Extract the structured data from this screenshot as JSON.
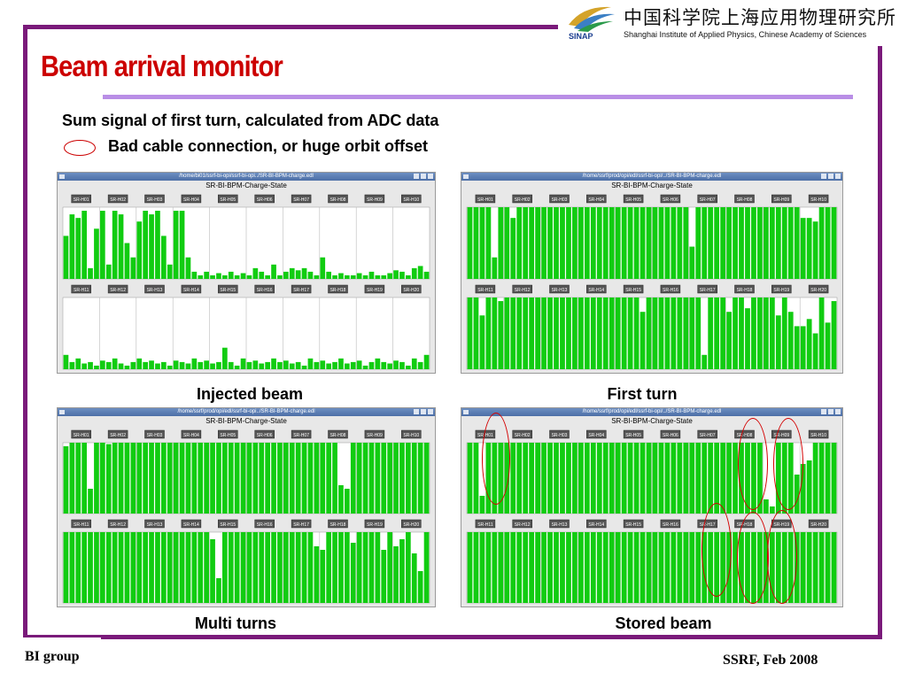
{
  "header": {
    "institute_cn": "中国科学院上海应用物理研究所",
    "logo_text": "SINAP",
    "institute_en": "Shanghai Institute of Applied Physics, Chinese Academy of Sciences"
  },
  "title": "Beam arrival monitor",
  "subtitle": "Sum signal of first turn, calculated from ADC data",
  "legend_text": "Bad cable connection, or huge orbit offset",
  "colors": {
    "frame": "#7a1a7a",
    "title": "#cc0000",
    "bar": "#11cc11",
    "highlight": "#d40000",
    "title_rule": "#b98ee6"
  },
  "panels": [
    {
      "caption": "Injected beam",
      "window_title": "/home/bi01/ssrf-bi-opi/ssrf-bi-opi../SR-BI-BPM-charge.edl",
      "heading": "SR-BI-BPM-Charge-State",
      "groups_top": [
        "SR-H01",
        "SR-H02",
        "SR-H03",
        "SR-H04",
        "SR-H05",
        "SR-H06",
        "SR-H07",
        "SR-H08",
        "SR-H09",
        "SR-H10"
      ],
      "groups_bottom": [
        "SR-H11",
        "SR-H12",
        "SR-H13",
        "SR-H14",
        "SR-H15",
        "SR-H16",
        "SR-H17",
        "SR-H18",
        "SR-H19",
        "SR-H20"
      ],
      "levels_top": [
        0.6,
        0.9,
        0.85,
        0.95,
        0.15,
        0.7,
        0.95,
        0.2,
        0.95,
        0.9,
        0.5,
        0.3,
        0.8,
        0.95,
        0.9,
        0.95,
        0.6,
        0.2,
        0.95,
        0.95,
        0.3,
        0.1,
        0.05,
        0.1,
        0.05,
        0.08,
        0.05,
        0.1,
        0.05,
        0.08,
        0.05,
        0.15,
        0.1,
        0.05,
        0.2,
        0.05,
        0.1,
        0.15,
        0.12,
        0.15,
        0.1,
        0.05,
        0.3,
        0.1,
        0.05,
        0.08,
        0.05,
        0.05,
        0.08,
        0.05,
        0.1,
        0.05,
        0.05,
        0.08,
        0.12,
        0.1,
        0.05,
        0.15,
        0.18,
        0.1
      ],
      "levels_bottom": [
        0.2,
        0.1,
        0.15,
        0.08,
        0.1,
        0.05,
        0.12,
        0.1,
        0.15,
        0.08,
        0.05,
        0.1,
        0.15,
        0.1,
        0.12,
        0.08,
        0.1,
        0.05,
        0.12,
        0.1,
        0.08,
        0.15,
        0.1,
        0.12,
        0.08,
        0.1,
        0.3,
        0.1,
        0.05,
        0.15,
        0.1,
        0.12,
        0.08,
        0.1,
        0.15,
        0.1,
        0.12,
        0.08,
        0.1,
        0.05,
        0.15,
        0.1,
        0.12,
        0.08,
        0.1,
        0.15,
        0.08,
        0.1,
        0.12,
        0.05,
        0.1,
        0.15,
        0.1,
        0.08,
        0.12,
        0.1,
        0.05,
        0.15,
        0.1,
        0.2
      ]
    },
    {
      "caption": "First turn",
      "window_title": "/home/ssrf/prod/opi/edl/ssrf-bi-opi/../SR-BI-BPM-charge.edl",
      "heading": "SR-BI-BPM-Charge-State",
      "groups_top": [
        "SR-H01",
        "SR-H02",
        "SR-H03",
        "SR-H04",
        "SR-H05",
        "SR-H06",
        "SR-H07",
        "SR-H08",
        "SR-H09",
        "SR-H10"
      ],
      "groups_bottom": [
        "SR-H11",
        "SR-H12",
        "SR-H13",
        "SR-H14",
        "SR-H15",
        "SR-H16",
        "SR-H17",
        "SR-H18",
        "SR-H19",
        "SR-H20"
      ],
      "levels_top": [
        1,
        1,
        1,
        1,
        0.3,
        1,
        1,
        0.85,
        1,
        1,
        1,
        1,
        1,
        1,
        1,
        1,
        1,
        1,
        1,
        1,
        1,
        1,
        1,
        1,
        1,
        1,
        1,
        1,
        1,
        1,
        1,
        1,
        1,
        1,
        1,
        1,
        0.45,
        1,
        1,
        1,
        1,
        1,
        1,
        1,
        1,
        1,
        1,
        1,
        1,
        1,
        1,
        1,
        1,
        1,
        0.85,
        0.85,
        0.8,
        1,
        1,
        1
      ],
      "levels_bottom": [
        1,
        1,
        0.75,
        1,
        1,
        0.95,
        1,
        1,
        1,
        1,
        1,
        1,
        1,
        1,
        1,
        1,
        1,
        1,
        1,
        1,
        1,
        1,
        1,
        1,
        1,
        1,
        1,
        1,
        0.8,
        1,
        1,
        1,
        1,
        1,
        1,
        1,
        1,
        1,
        0.2,
        1,
        1,
        1,
        0.8,
        1,
        1,
        0.85,
        1,
        1,
        1,
        1,
        0.75,
        1,
        0.8,
        0.6,
        0.6,
        0.7,
        0.5,
        1,
        0.65,
        0.95
      ]
    },
    {
      "caption": "Multi turns",
      "window_title": "/home/ssrf/prod/opi/edl/ssrf-bi-opi../SR-BI-BPM-charge.edl",
      "heading": "SR-BI-BPM-Charge-State",
      "groups_top": [
        "SR-H01",
        "SR-H02",
        "SR-H03",
        "SR-H04",
        "SR-H05",
        "SR-H06",
        "SR-H07",
        "SR-H08",
        "SR-H09",
        "SR-H10"
      ],
      "groups_bottom": [
        "SR-H11",
        "SR-H12",
        "SR-H13",
        "SR-H14",
        "SR-H15",
        "SR-H16",
        "SR-H17",
        "SR-H18",
        "SR-H19",
        "SR-H20"
      ],
      "levels_top": [
        0.95,
        1,
        1,
        1,
        0.35,
        1,
        1,
        0.98,
        1,
        1,
        1,
        1,
        1,
        1,
        1,
        1,
        1,
        1,
        1,
        1,
        1,
        1,
        1,
        1,
        1,
        1,
        1,
        1,
        1,
        1,
        1,
        1,
        1,
        1,
        1,
        1,
        1,
        1,
        1,
        1,
        1,
        1,
        1,
        1,
        1,
        0.4,
        0.35,
        1,
        1,
        1,
        1,
        1,
        1,
        1,
        1,
        1,
        1,
        1,
        1,
        1
      ],
      "levels_bottom": [
        1,
        1,
        1,
        1,
        1,
        1,
        1,
        1,
        1,
        1,
        1,
        1,
        1,
        1,
        1,
        1,
        1,
        1,
        1,
        1,
        1,
        1,
        1,
        1,
        0.9,
        0.35,
        1,
        1,
        1,
        1,
        1,
        1,
        1,
        1,
        1,
        1,
        1,
        1,
        1,
        1,
        1,
        0.8,
        0.75,
        1,
        1,
        1,
        1,
        0.85,
        1,
        1,
        1,
        1,
        0.75,
        1,
        0.8,
        0.9,
        1,
        0.7,
        0.45,
        1
      ]
    },
    {
      "caption": "Stored beam",
      "window_title": "/home/ssrf/prod/opi/edl/ssrf-bi-opi/../SR-BI-BPM-charge.edl",
      "heading": "SR-BI-BPM-Charge-State",
      "groups_top": [
        "SR-H01",
        "SR-H02",
        "SR-H03",
        "SR-H04",
        "SR-H05",
        "SR-H06",
        "SR-H07",
        "SR-H08",
        "SR-H09",
        "SR-H10"
      ],
      "groups_bottom": [
        "SR-H11",
        "SR-H12",
        "SR-H13",
        "SR-H14",
        "SR-H15",
        "SR-H16",
        "SR-H17",
        "SR-H18",
        "SR-H19",
        "SR-H20"
      ],
      "levels_top": [
        1,
        1,
        0.25,
        1,
        1,
        1,
        1,
        1,
        1,
        1,
        1,
        1,
        1,
        1,
        1,
        1,
        1,
        1,
        1,
        1,
        1,
        1,
        1,
        1,
        1,
        1,
        1,
        1,
        1,
        1,
        1,
        1,
        1,
        1,
        1,
        1,
        1,
        1,
        1,
        1,
        1,
        1,
        1,
        1,
        1,
        1,
        1,
        1,
        0.2,
        0.1,
        1,
        1,
        1,
        0.55,
        0.7,
        0.75,
        1,
        1,
        1,
        1
      ],
      "levels_bottom": [
        1,
        1,
        1,
        1,
        1,
        1,
        1,
        1,
        1,
        1,
        1,
        1,
        1,
        1,
        1,
        1,
        1,
        1,
        1,
        1,
        1,
        1,
        1,
        1,
        1,
        1,
        1,
        1,
        1,
        1,
        1,
        1,
        1,
        1,
        1,
        1,
        1,
        1,
        1,
        1,
        1,
        1,
        1,
        1,
        1,
        1,
        1,
        1,
        1,
        1,
        1,
        1,
        1,
        1,
        1,
        1,
        1,
        1,
        1,
        1
      ]
    }
  ],
  "footer": {
    "left": "BI group",
    "right": "SSRF, Feb 2008"
  }
}
